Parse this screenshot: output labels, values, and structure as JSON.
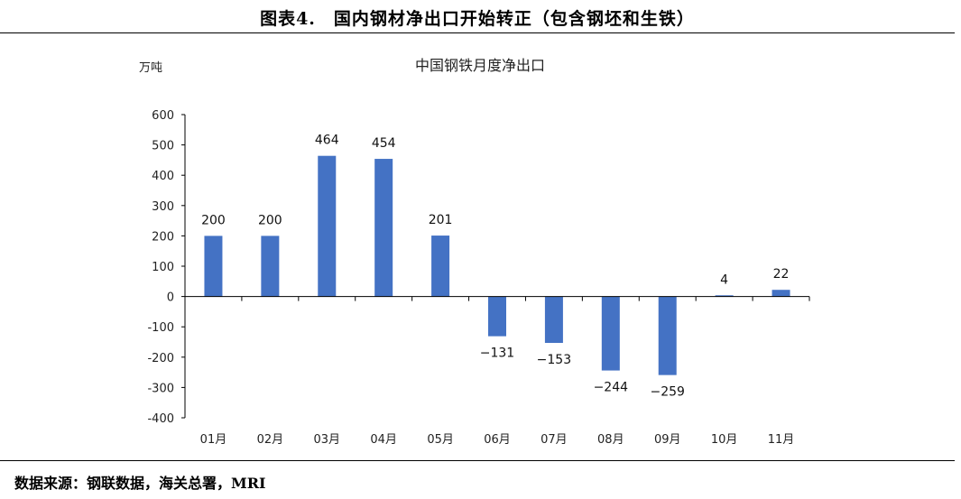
{
  "figure": {
    "title": "图表4.　国内钢材净出口开始转正（包含钢坯和生铁）",
    "source": "数据来源：钢联数据，海关总署，MRI"
  },
  "chart_data": {
    "type": "bar",
    "title": "中国钢铁月度净出口",
    "ylabel": "万吨",
    "xlabel": "",
    "categories": [
      "01月",
      "02月",
      "03月",
      "04月",
      "05月",
      "06月",
      "07月",
      "08月",
      "09月",
      "10月",
      "11月"
    ],
    "values": [
      200,
      200,
      464,
      454,
      201,
      -131,
      -153,
      -244,
      -259,
      4,
      22
    ],
    "data_labels": [
      "200",
      "200",
      "464",
      "454",
      "201",
      "−131",
      "−153",
      "−244",
      "−259",
      "4",
      "22"
    ],
    "ylim": [
      -400,
      600
    ],
    "yticks": [
      600,
      500,
      400,
      300,
      200,
      100,
      0,
      -100,
      -200,
      -300,
      -400
    ],
    "ytick_labels": [
      "600",
      "500",
      "400",
      "300",
      "200",
      "100",
      "0",
      "-100",
      "-200",
      "-300",
      "-400"
    ],
    "bar_color": "#4472C4",
    "grid": false,
    "legend": "none"
  }
}
